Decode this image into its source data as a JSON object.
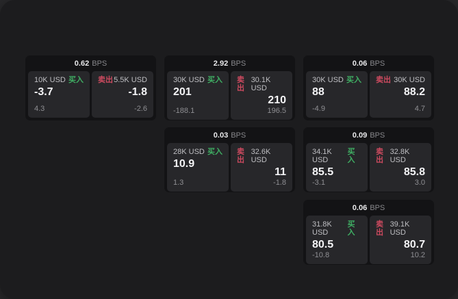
{
  "labels": {
    "bps_unit": "BPS",
    "buy": "买入",
    "sell": "卖出"
  },
  "colors": {
    "buy_green": "#3fae63",
    "sell_red": "#cc4a5f",
    "window_bg": "#1c1c1e",
    "card_bg": "#131315",
    "panel_bg": "#27272a"
  },
  "cards": [
    {
      "bps": "0.62",
      "buy": {
        "amount": "10K USD",
        "main": "-3.7",
        "sub": "4.3"
      },
      "sell": {
        "amount": "5.5K USD",
        "main": "-1.8",
        "sub": "-2.6"
      }
    },
    {
      "bps": "2.92",
      "buy": {
        "amount": "30K USD",
        "main": "201",
        "sub": "-188.1"
      },
      "sell": {
        "amount": "30.1K USD",
        "main": "210",
        "sub": "196.5"
      }
    },
    {
      "bps": "0.06",
      "buy": {
        "amount": "30K USD",
        "main": "88",
        "sub": "-4.9"
      },
      "sell": {
        "amount": "30K USD",
        "main": "88.2",
        "sub": "4.7"
      }
    },
    {
      "bps": "0.03",
      "buy": {
        "amount": "28K USD",
        "main": "10.9",
        "sub": "1.3"
      },
      "sell": {
        "amount": "32.6K USD",
        "main": "11",
        "sub": "-1.8"
      }
    },
    {
      "bps": "0.09",
      "buy": {
        "amount": "34.1K USD",
        "main": "85.5",
        "sub": "-3.1"
      },
      "sell": {
        "amount": "32.8K USD",
        "main": "85.8",
        "sub": "3.0"
      }
    },
    {
      "bps": "0.06",
      "buy": {
        "amount": "31.8K USD",
        "main": "80.5",
        "sub": "-10.8"
      },
      "sell": {
        "amount": "39.1K USD",
        "main": "80.7",
        "sub": "10.2"
      }
    }
  ]
}
